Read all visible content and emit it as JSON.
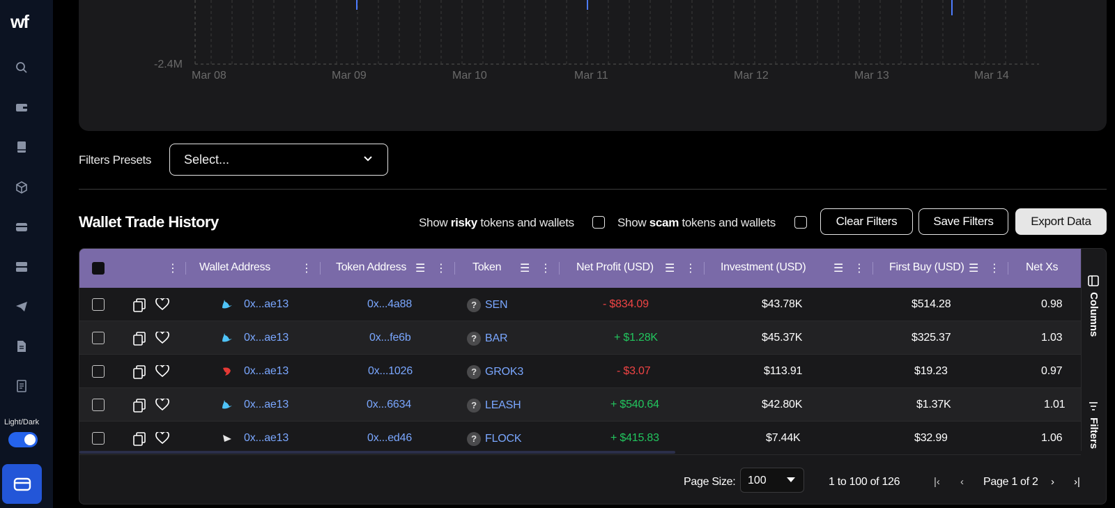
{
  "sidebar": {
    "logo": "wf",
    "theme_label": "Light/Dark"
  },
  "chart": {
    "y_tick": "-2.4M",
    "x_ticks": [
      "Mar 08",
      "Mar 09",
      "Mar 10",
      "Mar 11",
      "Mar 12",
      "Mar 13",
      "Mar 14"
    ]
  },
  "filters": {
    "presets_label": "Filters Presets",
    "select_placeholder": "Select..."
  },
  "section": {
    "title": "Wallet Trade History",
    "risky_prefix": "Show ",
    "risky_bold": "risky",
    "risky_suffix": " tokens and wallets",
    "scam_prefix": "Show ",
    "scam_bold": "scam",
    "scam_suffix": " tokens and wallets",
    "clear_label": "Clear Filters",
    "save_label": "Save Filters",
    "export_label": "Export Data"
  },
  "table": {
    "columns": {
      "wallet": "Wallet Address",
      "token_address": "Token Address",
      "token": "Token",
      "net_profit": "Net Profit (USD)",
      "investment": "Investment (USD)",
      "first_buy": "First Buy (USD)",
      "net_xs": "Net Xs"
    },
    "rows": [
      {
        "wallet": "0x...ae13",
        "token_address": "0x...4a88",
        "token": "SEN",
        "net_profit": "- $834.09",
        "investment": "$43.78K",
        "first_buy": "$514.28",
        "net_xs": "0.98"
      },
      {
        "wallet": "0x...ae13",
        "token_address": "0x...fe6b",
        "token": "BAR",
        "net_profit": "+ $1.28K",
        "investment": "$45.37K",
        "first_buy": "$325.37",
        "net_xs": "1.03"
      },
      {
        "wallet": "0x...ae13",
        "token_address": "0x...1026",
        "token": "GROK3",
        "net_profit": "- $3.07",
        "investment": "$113.91",
        "first_buy": "$19.23",
        "net_xs": "0.97"
      },
      {
        "wallet": "0x...ae13",
        "token_address": "0x...6634",
        "token": "LEASH",
        "net_profit": "+ $540.64",
        "investment": "$42.80K",
        "first_buy": "$1.37K",
        "net_xs": "1.01"
      },
      {
        "wallet": "0x...ae13",
        "token_address": "0x...ed46",
        "token": "FLOCK",
        "net_profit": "+ $415.83",
        "investment": "$7.44K",
        "first_buy": "$32.99",
        "net_xs": "1.06"
      }
    ],
    "side_columns": "Columns",
    "side_filters": "Filters"
  },
  "footer": {
    "page_size_label": "Page Size:",
    "page_size_value": "100",
    "range": "1 to 100 of 126",
    "page_label": "Page 1 of 2"
  },
  "colors": {
    "header_bg": "#7a6aa8",
    "accent_blue": "#2563eb",
    "link": "#7aa7ff",
    "negative": "#ef4444",
    "positive": "#22c55e"
  }
}
